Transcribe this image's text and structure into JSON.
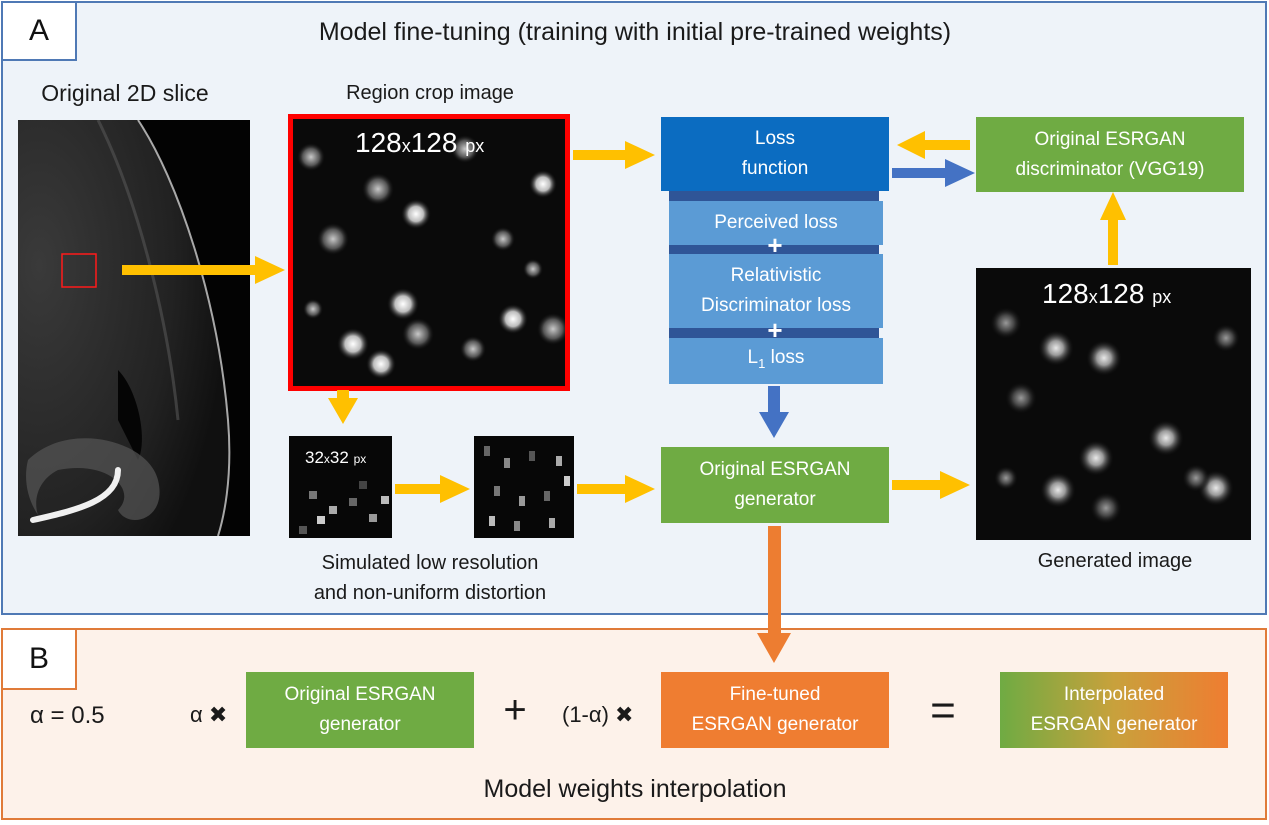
{
  "panel_a": {
    "label": "A",
    "title": "Model fine-tuning (training with initial pre-trained weights)",
    "original_slice_label": "Original 2D slice",
    "region_crop_label": "Region crop image",
    "crop_size_main": "128",
    "crop_size_x": "x",
    "crop_size_b": "128",
    "crop_size_unit": "px",
    "lowres_size_main": "32",
    "lowres_size_x": "x",
    "lowres_size_b": "32",
    "lowres_size_unit": "px",
    "simulated_label_line1": "Simulated low resolution",
    "simulated_label_line2": "and non-uniform distortion",
    "loss_function_line1": "Loss",
    "loss_function_line2": "function",
    "perceived_loss": "Perceived loss",
    "plus": "+",
    "relativistic_line1": "Relativistic",
    "relativistic_line2": "Discriminator loss",
    "l1_loss_L": "L",
    "l1_loss_sub": "1",
    "l1_loss_rest": " loss",
    "discriminator_line1": "Original ESRGAN",
    "discriminator_line2": "discriminator (VGG19)",
    "generator_line1": "Original ESRGAN",
    "generator_line2": "generator",
    "generated_size_main": "128",
    "generated_size_x": "x",
    "generated_size_b": "128",
    "generated_size_unit": "px",
    "generated_label": "Generated image"
  },
  "panel_b": {
    "label": "B",
    "alpha_eq": "α = 0.5",
    "alpha_times": "α ✖",
    "original_gen_line1": "Original ESRGAN",
    "original_gen_line2": "generator",
    "plus": "+",
    "one_minus_alpha": "(1-α) ✖",
    "finetuned_line1": "Fine-tuned",
    "finetuned_line2": "ESRGAN generator",
    "equals": "=",
    "interpolated_line1": "Interpolated",
    "interpolated_line2": "ESRGAN generator",
    "title": "Model weights interpolation"
  },
  "colors": {
    "panel_a_border": "#4f79b5",
    "panel_b_border": "#e07b39",
    "green": "#6fab43",
    "orange": "#ef7d31",
    "blue_dark": "#0b6cc1",
    "blue_light": "#5b9bd5",
    "yellow_arrow": "#ffc000",
    "blue_arrow": "#4472c4",
    "orange_arrow": "#ed7d31",
    "crop_border": "#ff0000"
  }
}
